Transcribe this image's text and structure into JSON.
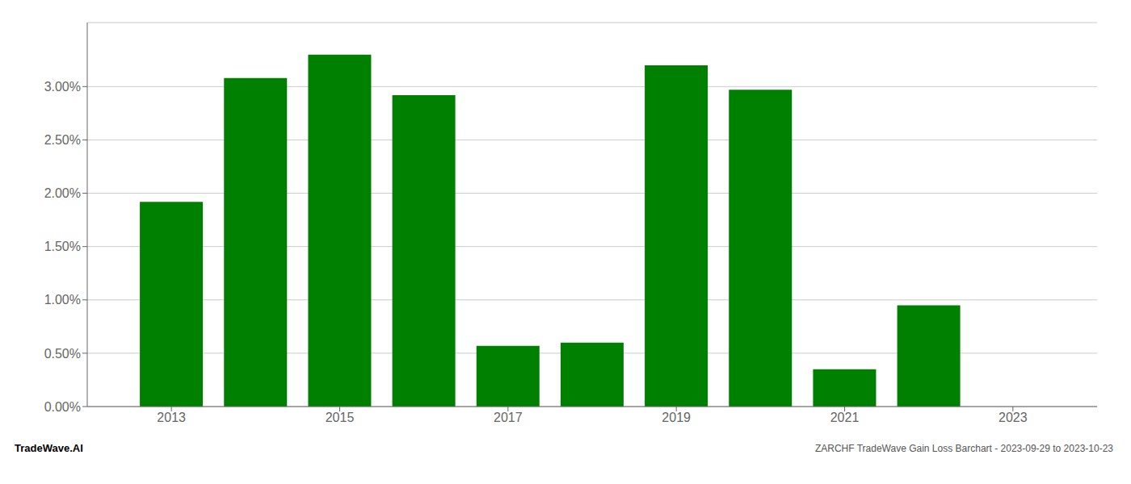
{
  "chart_data": {
    "type": "bar",
    "x": [
      2013,
      2014,
      2015,
      2016,
      2017,
      2018,
      2019,
      2020,
      2021,
      2022,
      2023
    ],
    "values": [
      0.0192,
      0.0308,
      0.033,
      0.0292,
      0.0057,
      0.006,
      0.032,
      0.0297,
      0.0035,
      0.0095,
      0.0
    ],
    "color": "#008000",
    "xlim": [
      2012,
      2024
    ],
    "xticks": [
      2013,
      2015,
      2017,
      2019,
      2021,
      2023
    ],
    "ylim": [
      0.0,
      0.036
    ],
    "yticks": [
      {
        "value": 0.0,
        "label": "0.00%"
      },
      {
        "value": 0.005,
        "label": "0.50%"
      },
      {
        "value": 0.01,
        "label": "1.00%"
      },
      {
        "value": 0.015,
        "label": "1.50%"
      },
      {
        "value": 0.02,
        "label": "2.00%"
      },
      {
        "value": 0.025,
        "label": "2.50%"
      },
      {
        "value": 0.03,
        "label": "3.00%"
      }
    ],
    "grid": true,
    "annotations": [
      "TradeWave.AI",
      "ZARCHF TradeWave Gain Loss Barchart - 2023-09-29 to 2023-10-23"
    ]
  }
}
